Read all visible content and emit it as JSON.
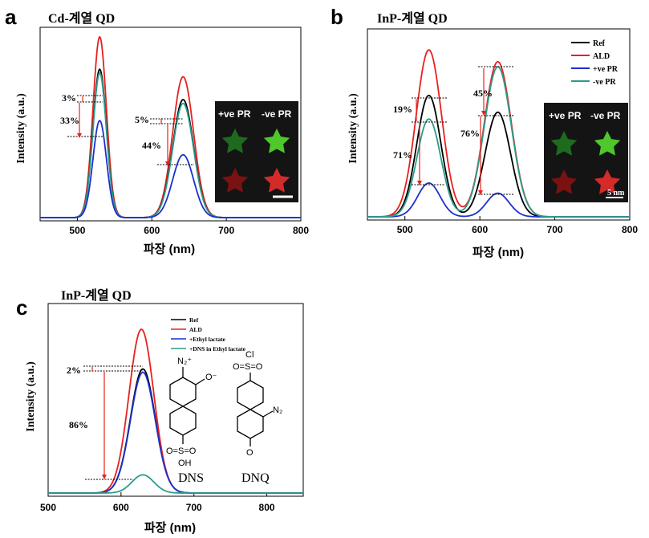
{
  "figure": {
    "x_label": "파장 (nm)",
    "y_label": "Intensity (a.u.)"
  },
  "panels": [
    {
      "letter": "a",
      "title": "Cd-계열 QD",
      "inset": {
        "left_label": "+ve PR",
        "right_label": "-ve PR",
        "scale_label": ""
      },
      "annotations": [
        "3%",
        "33%",
        "5%",
        "44%"
      ]
    },
    {
      "letter": "b",
      "title": "InP-계열 QD",
      "inset": {
        "left_label": "+ve PR",
        "right_label": "-ve PR",
        "scale_label": "5 nm"
      },
      "annotations": [
        "19%",
        "71%",
        "45%",
        "76%"
      ]
    },
    {
      "letter": "c",
      "title": "InP-계열 QD",
      "structures": {
        "dns_label": "DNS",
        "dnq_label": "DNQ",
        "dns_top": "N₂⁺",
        "dns_side": "O⁻",
        "dns_bottom1": "O=S=O",
        "dns_bottom2": "OH",
        "dnq_top1": "Cl",
        "dnq_top2": "O=S=O",
        "dnq_side": "N₂",
        "dnq_bottom": "O"
      },
      "annotations": [
        "2%",
        "86%"
      ]
    }
  ],
  "colors": {
    "ref": "#000000",
    "ald": "#e8201e",
    "pos": "#1c2fd0",
    "neg": "#2c9c8a",
    "arrow": "#e8201e",
    "inset_bg": "#141414",
    "star_green_dim": "#1e6a1e",
    "star_green_bright": "#4ec82a",
    "star_red_dim": "#7a1212",
    "star_red_bright": "#d42a2a"
  },
  "chart_data": [
    {
      "panel": "a",
      "type": "line",
      "title": "Cd-계열 QD",
      "xlabel": "파장 (nm)",
      "ylabel": "Intensity (a.u.)",
      "xlim": [
        450,
        800
      ],
      "xticks": [
        500,
        600,
        700,
        800
      ],
      "ylim": [
        0,
        1.0
      ],
      "legend": "none",
      "series": [
        {
          "peaks": [
            {
              "center": 530,
              "height": 0.95,
              "width": 9
            },
            {
              "center": 642,
              "height": 0.74,
              "width": 14
            }
          ],
          "color": "#e8201e"
        },
        {
          "peaks": [
            {
              "center": 530,
              "height": 0.78,
              "width": 9
            },
            {
              "center": 642,
              "height": 0.62,
              "width": 14
            }
          ],
          "color": "#000000"
        },
        {
          "peaks": [
            {
              "center": 530,
              "height": 0.76,
              "width": 9
            },
            {
              "center": 642,
              "height": 0.6,
              "width": 14
            }
          ],
          "color": "#2c9c8a"
        },
        {
          "peaks": [
            {
              "center": 530,
              "height": 0.51,
              "width": 9
            },
            {
              "center": 642,
              "height": 0.33,
              "width": 14
            }
          ],
          "color": "#1c2fd0"
        }
      ]
    },
    {
      "panel": "b",
      "type": "line",
      "title": "InP-계열 QD",
      "xlabel": "파장 (nm)",
      "ylabel": "Intensity (a.u.)",
      "xlim": [
        450,
        800
      ],
      "xticks": [
        500,
        600,
        700,
        800
      ],
      "ylim": [
        0,
        1.0
      ],
      "legend": "top-right",
      "series": [
        {
          "name": "Ref",
          "peaks": [
            {
              "center": 532,
              "height": 0.72,
              "width": 16
            },
            {
              "center": 624,
              "height": 0.62,
              "width": 17
            }
          ],
          "color": "#000000"
        },
        {
          "name": "ALD",
          "peaks": [
            {
              "center": 532,
              "height": 0.99,
              "width": 17
            },
            {
              "center": 624,
              "height": 0.92,
              "width": 18
            }
          ],
          "color": "#e8201e"
        },
        {
          "name": "+ve PR",
          "peaks": [
            {
              "center": 532,
              "height": 0.2,
              "width": 15
            },
            {
              "center": 624,
              "height": 0.14,
              "width": 15
            }
          ],
          "color": "#1c2fd0"
        },
        {
          "name": "-ve PR",
          "peaks": [
            {
              "center": 532,
              "height": 0.58,
              "width": 16
            },
            {
              "center": 624,
              "height": 0.89,
              "width": 18
            }
          ],
          "color": "#2c9c8a"
        }
      ]
    },
    {
      "panel": "c",
      "type": "line",
      "title": "InP-계열 QD",
      "xlabel": "파장 (nm)",
      "ylabel": "Intensity (a.u.)",
      "xlim": [
        500,
        850
      ],
      "xticks": [
        500,
        600,
        700,
        800
      ],
      "ylim": [
        0,
        1.0
      ],
      "legend": "top",
      "series": [
        {
          "name": "Ref",
          "peaks": [
            {
              "center": 630,
              "height": 0.75,
              "width": 17
            }
          ],
          "color": "#000000"
        },
        {
          "name": "ALD",
          "peaks": [
            {
              "center": 628,
              "height": 0.99,
              "width": 17
            }
          ],
          "color": "#e8201e"
        },
        {
          "name": "+Ethyl lactate",
          "peaks": [
            {
              "center": 630,
              "height": 0.73,
              "width": 17
            }
          ],
          "color": "#1c2fd0"
        },
        {
          "name": "+DNS in Ethyl lactate",
          "peaks": [
            {
              "center": 630,
              "height": 0.11,
              "width": 15
            }
          ],
          "color": "#2c9c8a"
        }
      ]
    }
  ]
}
